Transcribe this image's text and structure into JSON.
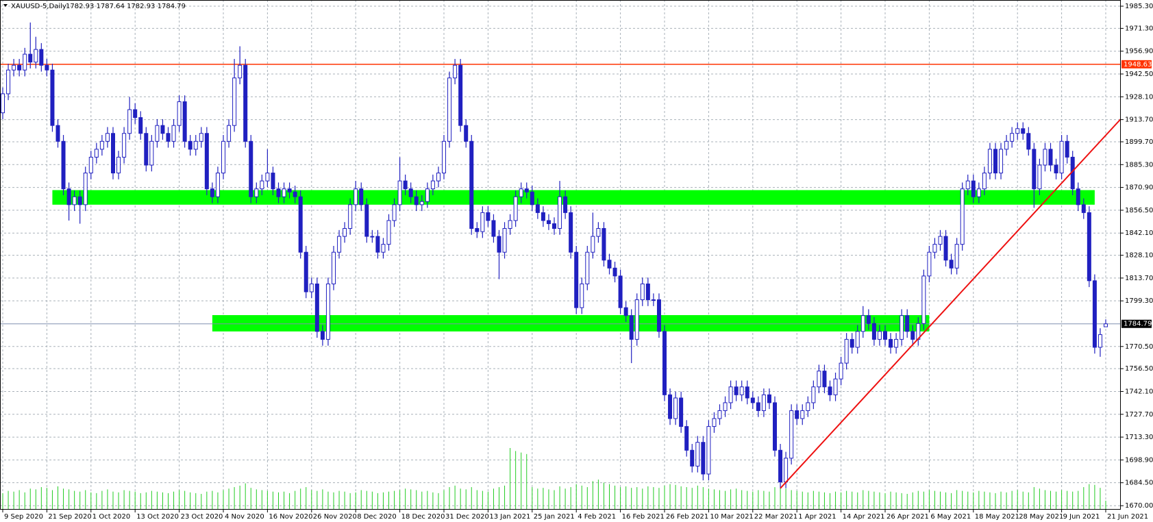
{
  "chart_data": {
    "type": "candlestick",
    "title": "XAUUSD-5,Daily",
    "info": "1782.93 1787.64 1782.93 1784.79",
    "up_color": "#ffffff",
    "down_color": "#2020c0",
    "edge_color": "#2020c0",
    "volume_color": "#22cc22",
    "ylim": [
      1667.5,
      1989.2
    ],
    "yticks": [
      {
        "value": 1985.3,
        "label": "1985.30"
      },
      {
        "value": 1971.3,
        "label": "1971.30"
      },
      {
        "value": 1956.9,
        "label": "1956.90"
      },
      {
        "value": 1942.5,
        "label": "1942.50"
      },
      {
        "value": 1928.1,
        "label": "1928.10"
      },
      {
        "value": 1913.7,
        "label": "1913.70"
      },
      {
        "value": 1899.7,
        "label": "1899.70"
      },
      {
        "value": 1885.3,
        "label": "1885.30"
      },
      {
        "value": 1870.9,
        "label": "1870.90"
      },
      {
        "value": 1856.5,
        "label": "1856.50"
      },
      {
        "value": 1842.1,
        "label": "1842.10"
      },
      {
        "value": 1828.1,
        "label": "1828.10"
      },
      {
        "value": 1813.7,
        "label": "1813.70"
      },
      {
        "value": 1799.3,
        "label": "1799.30"
      },
      {
        "value": 1770.5,
        "label": "1770.50"
      },
      {
        "value": 1756.5,
        "label": "1756.50"
      },
      {
        "value": 1742.1,
        "label": "1742.10"
      },
      {
        "value": 1727.7,
        "label": "1727.70"
      },
      {
        "value": 1713.3,
        "label": "1713.30"
      },
      {
        "value": 1698.9,
        "label": "1698.90"
      },
      {
        "value": 1684.5,
        "label": "1684.50"
      },
      {
        "value": 1670,
        "label": "1670.00"
      }
    ],
    "xticks": [
      {
        "value": 0,
        "label": "9 Sep 2020"
      },
      {
        "value": 8,
        "label": "21 Sep 2020"
      },
      {
        "value": 16,
        "label": "1 Oct 2020"
      },
      {
        "value": 24,
        "label": "13 Oct 2020"
      },
      {
        "value": 32,
        "label": "23 Oct 2020"
      },
      {
        "value": 40,
        "label": "4 Nov 2020"
      },
      {
        "value": 48,
        "label": "16 Nov 2020"
      },
      {
        "value": 56,
        "label": "26 Nov 2020"
      },
      {
        "value": 64,
        "label": "8 Dec 2020"
      },
      {
        "value": 72,
        "label": "18 Dec 2020"
      },
      {
        "value": 80,
        "label": "31 Dec 2020"
      },
      {
        "value": 88,
        "label": "13 Jan 2021"
      },
      {
        "value": 96,
        "label": "25 Jan 2021"
      },
      {
        "value": 104,
        "label": "4 Feb 2021"
      },
      {
        "value": 112,
        "label": "16 Feb 2021"
      },
      {
        "value": 120,
        "label": "26 Feb 2021"
      },
      {
        "value": 128,
        "label": "10 Mar 2021"
      },
      {
        "value": 136,
        "label": "22 Mar 2021"
      },
      {
        "value": 144,
        "label": "1 Apr 2021"
      },
      {
        "value": 152,
        "label": "14 Apr 2021"
      },
      {
        "value": 160,
        "label": "26 Apr 2021"
      },
      {
        "value": 168,
        "label": "6 May 2021"
      },
      {
        "value": 176,
        "label": "18 May 2021"
      },
      {
        "value": 184,
        "label": "28 May 2021"
      },
      {
        "value": 192,
        "label": "9 Jun 2021"
      },
      {
        "value": 200,
        "label": "21 Jun 2021"
      }
    ],
    "grid": true,
    "hline": {
      "value": 1948.63,
      "label": "1948.63",
      "color": "#ff3300"
    },
    "last_price": {
      "value": 1784.79,
      "label": "1784.79",
      "color": "#8090b0"
    },
    "zones": [
      {
        "from": 9,
        "to": 198,
        "low": 1860,
        "high": 1869.2,
        "color": "#00ff00"
      },
      {
        "from": 38,
        "to": 168,
        "low": 1780,
        "high": 1790.3,
        "color": "#00ff00"
      }
    ],
    "trendline": {
      "x": [
        141,
        203.5
      ],
      "y": [
        1681,
        1917
      ],
      "color": "#ee1111"
    },
    "open": [
      1918,
      1930,
      1945,
      1948,
      1945,
      1955,
      1950,
      1958,
      1948,
      1945,
      1910,
      1900,
      1870,
      1860,
      1865,
      1860,
      1880,
      1890,
      1895,
      1900,
      1905,
      1880,
      1890,
      1905,
      1920,
      1915,
      1905,
      1885,
      1900,
      1910,
      1905,
      1900,
      1910,
      1925,
      1900,
      1895,
      1900,
      1905,
      1870,
      1865,
      1880,
      1900,
      1910,
      1940,
      1948,
      1900,
      1865,
      1870,
      1875,
      1880,
      1870,
      1865,
      1870,
      1868,
      1865,
      1830,
      1805,
      1810,
      1780,
      1775,
      1810,
      1830,
      1840,
      1845,
      1860,
      1870,
      1860,
      1840,
      1840,
      1830,
      1835,
      1850,
      1860,
      1875,
      1870,
      1865,
      1860,
      1862,
      1870,
      1875,
      1880,
      1900,
      1940,
      1948,
      1910,
      1900,
      1845,
      1843,
      1855,
      1850,
      1840,
      1830,
      1845,
      1850,
      1865,
      1870,
      1868,
      1860,
      1855,
      1850,
      1848,
      1845,
      1865,
      1855,
      1830,
      1795,
      1810,
      1830,
      1840,
      1845,
      1825,
      1820,
      1815,
      1795,
      1790,
      1775,
      1800,
      1810,
      1800,
      1800,
      1780,
      1740,
      1725,
      1738,
      1720,
      1705,
      1695,
      1710,
      1690,
      1720,
      1725,
      1730,
      1735,
      1745,
      1740,
      1745,
      1738,
      1735,
      1730,
      1740,
      1735,
      1705,
      1685,
      1700,
      1730,
      1725,
      1730,
      1735,
      1745,
      1755,
      1745,
      1740,
      1750,
      1760,
      1775,
      1770,
      1780,
      1790,
      1785,
      1775,
      1780,
      1775,
      1770,
      1775,
      1790,
      1780,
      1775,
      1785,
      1815,
      1830,
      1835,
      1840,
      1825,
      1820,
      1835,
      1870,
      1875,
      1865,
      1870,
      1880,
      1895,
      1880,
      1895,
      1900,
      1905,
      1908,
      1905,
      1895,
      1870,
      1885,
      1895,
      1885,
      1880,
      1900,
      1890,
      1870,
      1860,
      1855,
      1812,
      1770,
      1782.93
    ],
    "high": [
      1934,
      1949,
      1952,
      1952,
      1959,
      1975,
      1966,
      1962,
      1952,
      1949,
      1914,
      1904,
      1874,
      1869,
      1869,
      1884,
      1894,
      1899,
      1904,
      1909,
      1909,
      1894,
      1909,
      1928,
      1924,
      1919,
      1909,
      1904,
      1914,
      1914,
      1909,
      1914,
      1929,
      1929,
      1904,
      1904,
      1909,
      1909,
      1874,
      1884,
      1904,
      1914,
      1952,
      1960,
      1952,
      1904,
      1874,
      1879,
      1895,
      1884,
      1874,
      1874,
      1874,
      1872,
      1869,
      1834,
      1814,
      1814,
      1784,
      1814,
      1834,
      1844,
      1849,
      1864,
      1875,
      1874,
      1864,
      1844,
      1844,
      1839,
      1854,
      1864,
      1890,
      1879,
      1874,
      1869,
      1866,
      1874,
      1879,
      1884,
      1904,
      1944,
      1952,
      1952,
      1914,
      1904,
      1849,
      1859,
      1859,
      1854,
      1844,
      1849,
      1854,
      1869,
      1874,
      1874,
      1872,
      1864,
      1859,
      1854,
      1852,
      1875,
      1869,
      1859,
      1834,
      1814,
      1834,
      1855,
      1849,
      1849,
      1829,
      1824,
      1819,
      1799,
      1794,
      1804,
      1814,
      1814,
      1804,
      1804,
      1784,
      1744,
      1742,
      1742,
      1724,
      1709,
      1714,
      1714,
      1724,
      1729,
      1734,
      1739,
      1749,
      1749,
      1749,
      1749,
      1742,
      1739,
      1744,
      1744,
      1739,
      1709,
      1704,
      1734,
      1734,
      1734,
      1739,
      1749,
      1759,
      1759,
      1749,
      1754,
      1764,
      1779,
      1779,
      1784,
      1796,
      1794,
      1789,
      1784,
      1784,
      1779,
      1779,
      1794,
      1794,
      1784,
      1789,
      1819,
      1834,
      1839,
      1844,
      1844,
      1829,
      1839,
      1874,
      1879,
      1879,
      1874,
      1884,
      1899,
      1899,
      1899,
      1904,
      1909,
      1912,
      1912,
      1909,
      1899,
      1889,
      1899,
      1899,
      1889,
      1904,
      1904,
      1894,
      1874,
      1864,
      1859,
      1816,
      1782,
      1787.64
    ],
    "low": [
      1914,
      1926,
      1941,
      1941,
      1941,
      1946,
      1946,
      1944,
      1941,
      1906,
      1896,
      1866,
      1850,
      1856,
      1848,
      1856,
      1876,
      1886,
      1891,
      1896,
      1876,
      1876,
      1886,
      1901,
      1911,
      1901,
      1881,
      1881,
      1896,
      1901,
      1896,
      1896,
      1906,
      1896,
      1891,
      1891,
      1896,
      1866,
      1861,
      1861,
      1876,
      1896,
      1906,
      1936,
      1896,
      1861,
      1861,
      1866,
      1871,
      1866,
      1861,
      1861,
      1864,
      1861,
      1826,
      1801,
      1801,
      1776,
      1771,
      1771,
      1806,
      1826,
      1836,
      1841,
      1856,
      1856,
      1836,
      1836,
      1826,
      1826,
      1831,
      1846,
      1856,
      1866,
      1861,
      1856,
      1856,
      1858,
      1866,
      1871,
      1876,
      1896,
      1936,
      1906,
      1896,
      1841,
      1839,
      1839,
      1846,
      1836,
      1813,
      1826,
      1841,
      1846,
      1861,
      1864,
      1856,
      1851,
      1846,
      1844,
      1841,
      1841,
      1851,
      1826,
      1791,
      1791,
      1806,
      1826,
      1836,
      1821,
      1816,
      1811,
      1791,
      1786,
      1760,
      1771,
      1796,
      1796,
      1796,
      1776,
      1736,
      1721,
      1721,
      1716,
      1701,
      1691,
      1691,
      1686,
      1686,
      1716,
      1721,
      1726,
      1731,
      1736,
      1736,
      1734,
      1731,
      1726,
      1726,
      1731,
      1701,
      1681,
      1681,
      1696,
      1721,
      1721,
      1726,
      1731,
      1741,
      1741,
      1736,
      1736,
      1746,
      1756,
      1766,
      1766,
      1776,
      1781,
      1771,
      1771,
      1771,
      1766,
      1766,
      1771,
      1776,
      1771,
      1771,
      1781,
      1811,
      1826,
      1831,
      1821,
      1816,
      1816,
      1831,
      1866,
      1861,
      1861,
      1866,
      1876,
      1876,
      1876,
      1891,
      1896,
      1901,
      1901,
      1891,
      1858,
      1866,
      1881,
      1881,
      1876,
      1876,
      1886,
      1866,
      1856,
      1851,
      1808,
      1766,
      1764,
      1782.93
    ],
    "close": [
      1930,
      1945,
      1948,
      1945,
      1955,
      1950,
      1958,
      1948,
      1945,
      1910,
      1900,
      1870,
      1860,
      1865,
      1860,
      1880,
      1890,
      1895,
      1900,
      1905,
      1880,
      1890,
      1905,
      1920,
      1915,
      1905,
      1885,
      1900,
      1910,
      1905,
      1900,
      1910,
      1925,
      1900,
      1895,
      1900,
      1905,
      1870,
      1865,
      1880,
      1900,
      1910,
      1940,
      1948,
      1900,
      1865,
      1870,
      1875,
      1880,
      1870,
      1865,
      1870,
      1868,
      1865,
      1830,
      1805,
      1810,
      1780,
      1775,
      1810,
      1830,
      1840,
      1845,
      1860,
      1870,
      1860,
      1840,
      1840,
      1830,
      1835,
      1850,
      1860,
      1875,
      1870,
      1865,
      1860,
      1862,
      1870,
      1875,
      1880,
      1900,
      1940,
      1948,
      1910,
      1900,
      1845,
      1843,
      1855,
      1850,
      1840,
      1830,
      1845,
      1850,
      1865,
      1870,
      1868,
      1860,
      1855,
      1850,
      1848,
      1845,
      1865,
      1855,
      1830,
      1795,
      1810,
      1830,
      1840,
      1845,
      1825,
      1820,
      1815,
      1795,
      1790,
      1775,
      1800,
      1810,
      1800,
      1800,
      1780,
      1740,
      1725,
      1738,
      1720,
      1705,
      1695,
      1710,
      1690,
      1720,
      1725,
      1730,
      1735,
      1745,
      1740,
      1745,
      1738,
      1735,
      1730,
      1740,
      1735,
      1705,
      1685,
      1700,
      1730,
      1725,
      1730,
      1735,
      1745,
      1755,
      1745,
      1740,
      1750,
      1760,
      1775,
      1770,
      1780,
      1790,
      1785,
      1775,
      1780,
      1775,
      1770,
      1775,
      1790,
      1780,
      1775,
      1785,
      1815,
      1830,
      1835,
      1840,
      1825,
      1820,
      1835,
      1870,
      1875,
      1865,
      1870,
      1880,
      1895,
      1880,
      1895,
      1900,
      1905,
      1908,
      1905,
      1895,
      1870,
      1885,
      1895,
      1885,
      1880,
      1900,
      1890,
      1870,
      1860,
      1855,
      1812,
      1770,
      1778,
      1784.79
    ],
    "volumes": [
      22,
      25,
      24,
      26,
      23,
      28,
      27,
      30,
      29,
      26,
      31,
      28,
      27,
      25,
      24,
      26,
      23,
      22,
      25,
      27,
      24,
      23,
      26,
      25,
      24,
      22,
      23,
      25,
      24,
      23,
      22,
      24,
      26,
      25,
      23,
      22,
      21,
      24,
      25,
      23,
      26,
      28,
      30,
      32,
      35,
      29,
      27,
      26,
      25,
      24,
      23,
      24,
      22,
      25,
      28,
      30,
      26,
      25,
      27,
      24,
      23,
      25,
      24,
      22,
      23,
      26,
      25,
      24,
      22,
      23,
      24,
      25,
      26,
      28,
      27,
      26,
      24,
      25,
      23,
      22,
      26,
      30,
      32,
      28,
      27,
      30,
      26,
      25,
      24,
      28,
      30,
      32,
      82,
      78,
      76,
      74,
      30,
      28,
      29,
      27,
      26,
      31,
      28,
      30,
      34,
      32,
      30,
      38,
      40,
      36,
      34,
      32,
      30,
      31,
      29,
      30,
      28,
      31,
      30,
      29,
      32,
      34,
      33,
      31,
      30,
      29,
      32,
      30,
      28,
      27,
      26,
      25,
      27,
      28,
      26,
      25,
      24,
      26,
      25,
      24,
      30,
      32,
      28,
      26,
      25,
      24,
      23,
      25,
      24,
      23,
      22,
      24,
      23,
      25,
      24,
      23,
      26,
      25,
      24,
      23,
      22,
      24,
      23,
      22,
      21,
      23,
      25,
      24,
      26,
      25,
      24,
      23,
      22,
      26,
      25,
      24,
      23,
      25,
      24,
      23,
      22,
      24,
      23,
      25,
      26,
      24,
      23,
      30,
      28,
      26,
      25,
      24,
      26,
      25,
      24,
      25,
      30,
      34,
      33,
      29,
      12
    ]
  }
}
